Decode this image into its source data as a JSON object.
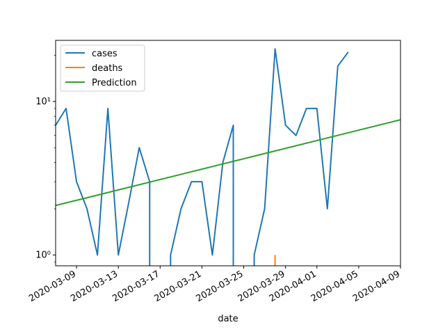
{
  "chart_data": {
    "type": "line",
    "title": "",
    "xlabel": "date",
    "ylabel": "",
    "yscale": "log",
    "ylim": [
      0.85,
      25
    ],
    "xlim": [
      "2020-03-07",
      "2020-04-09"
    ],
    "x_ticks": [
      "2020-03-09",
      "2020-03-13",
      "2020-03-17",
      "2020-03-21",
      "2020-03-25",
      "2020-03-29",
      "2020-04-01",
      "2020-04-05",
      "2020-04-09"
    ],
    "y_ticks": [
      {
        "value": 1,
        "label": "10⁰"
      },
      {
        "value": 10,
        "label": "10¹"
      }
    ],
    "legend_position": "top-left",
    "grid": false,
    "series": [
      {
        "name": "cases",
        "color": "#1f77b4",
        "points": [
          [
            "2020-03-07",
            7
          ],
          [
            "2020-03-08",
            9
          ],
          [
            "2020-03-09",
            3
          ],
          [
            "2020-03-10",
            2
          ],
          [
            "2020-03-11",
            1
          ],
          [
            "2020-03-12",
            9
          ],
          [
            "2020-03-13",
            1
          ],
          [
            "2020-03-14",
            2.2
          ],
          [
            "2020-03-15",
            5
          ],
          [
            "2020-03-16",
            3
          ],
          [
            "2020-03-16",
            0.85
          ],
          null,
          [
            "2020-03-18",
            0.85
          ],
          [
            "2020-03-18",
            1
          ],
          [
            "2020-03-19",
            2
          ],
          [
            "2020-03-20",
            3
          ],
          [
            "2020-03-21",
            3
          ],
          [
            "2020-03-22",
            1
          ],
          [
            "2020-03-23",
            4
          ],
          [
            "2020-03-24",
            7
          ],
          [
            "2020-03-24",
            0.85
          ],
          null,
          [
            "2020-03-26",
            0.85
          ],
          [
            "2020-03-26",
            1
          ],
          [
            "2020-03-27",
            2
          ],
          [
            "2020-03-28",
            22
          ],
          [
            "2020-03-29",
            7
          ],
          [
            "2020-03-30",
            6
          ],
          [
            "2020-03-31",
            9
          ],
          [
            "2020-04-01",
            9
          ],
          [
            "2020-04-02",
            2
          ],
          [
            "2020-04-03",
            17
          ],
          [
            "2020-04-04",
            21
          ]
        ]
      },
      {
        "name": "deaths",
        "color": "#ff7f0e",
        "points": [
          [
            "2020-03-28",
            0.85
          ],
          [
            "2020-03-28",
            1
          ]
        ]
      },
      {
        "name": "Prediction",
        "color": "#2ca02c",
        "points": [
          [
            "2020-03-07",
            2.1
          ],
          [
            "2020-04-09",
            7.6
          ]
        ]
      }
    ]
  }
}
